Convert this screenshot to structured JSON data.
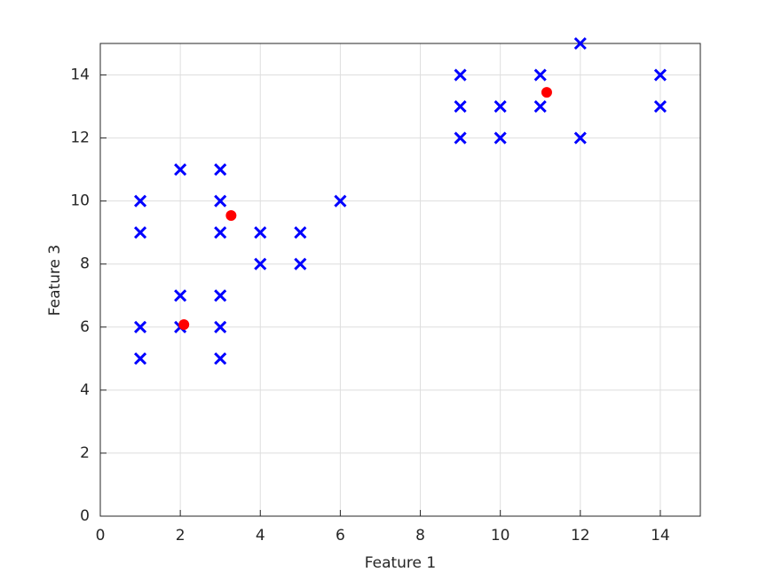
{
  "chart_data": {
    "type": "scatter",
    "x_label": "Feature 1",
    "y_label": "Feature 3",
    "xlim": [
      0,
      15
    ],
    "ylim": [
      0,
      15
    ],
    "xticks": [
      0,
      2,
      4,
      6,
      8,
      10,
      12,
      14
    ],
    "yticks": [
      0,
      2,
      4,
      6,
      8,
      10,
      12,
      14
    ],
    "grid": true,
    "series": [
      {
        "color": "#0000ff",
        "marker": "x",
        "x": [
          1,
          1,
          1,
          1,
          2,
          2,
          2,
          3,
          3,
          3,
          3,
          3,
          3,
          4,
          4,
          5,
          5,
          6,
          9,
          9,
          9,
          10,
          10,
          11,
          11,
          12,
          12,
          14,
          14
        ],
        "values": [
          10,
          9,
          6,
          5,
          11,
          7,
          6,
          11,
          10,
          9,
          7,
          6,
          5,
          9,
          8,
          9,
          8,
          10,
          14,
          13,
          12,
          13,
          12,
          14,
          13,
          15,
          12,
          14,
          13
        ]
      },
      {
        "color": "#ff0000",
        "marker": "o",
        "x": [
          3.27,
          2.09,
          11.16
        ],
        "values": [
          9.54,
          6.08,
          13.45
        ]
      }
    ]
  }
}
